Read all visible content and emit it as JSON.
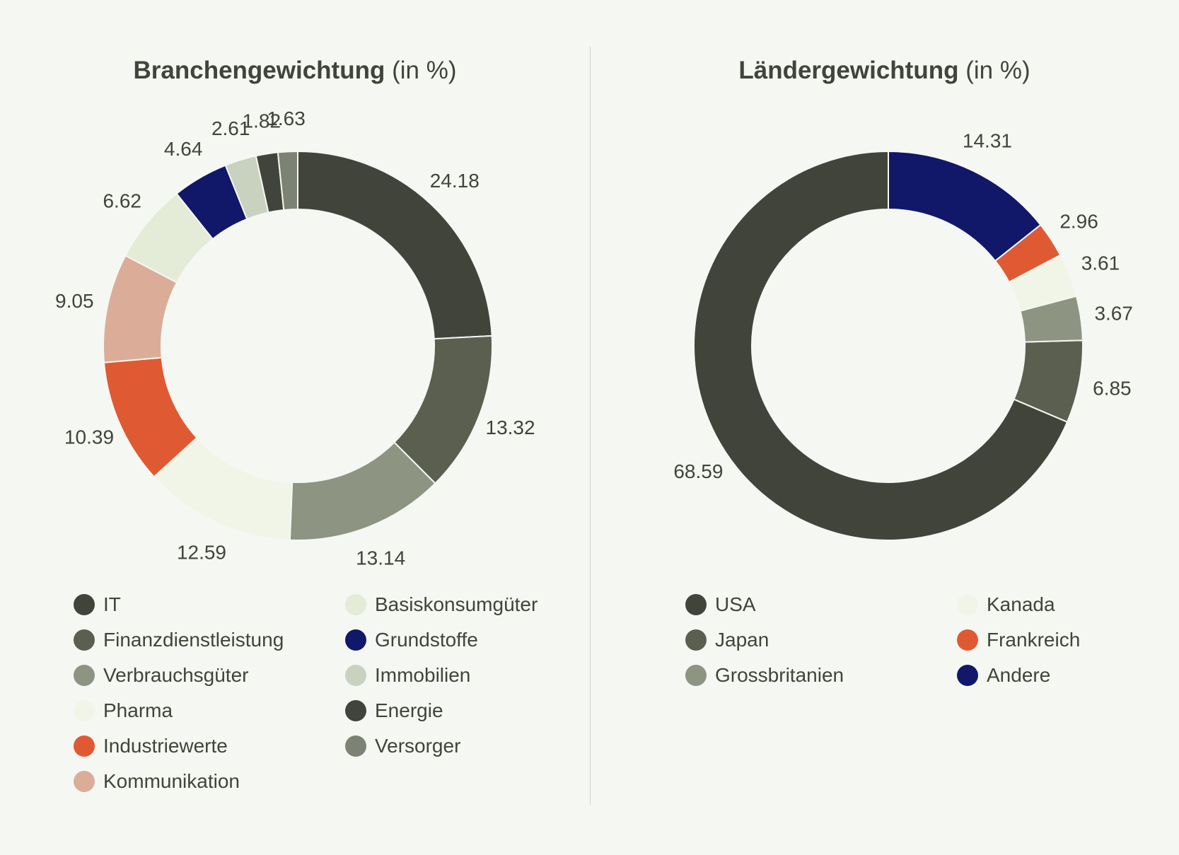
{
  "chart_data": [
    {
      "type": "pie",
      "title": "Branchengewichtung",
      "subtitle": "(in %)",
      "categories": [
        "IT",
        "Finanzdienstleistung",
        "Verbrauchsgüter",
        "Pharma",
        "Industriewerte",
        "Kommunikation",
        "Basiskonsumgüter",
        "Grundstoffe",
        "Immobilien",
        "Energie",
        "Versorger"
      ],
      "values": [
        24.18,
        13.32,
        13.14,
        12.59,
        10.39,
        9.05,
        6.62,
        4.64,
        2.61,
        1.82,
        1.63
      ],
      "labels": [
        "24.18",
        "13.32",
        "13.14",
        "12.59",
        "10.39",
        "9.05",
        "6.62",
        "4.64",
        "2.61",
        "1.82",
        "1.63"
      ],
      "colors": [
        "#41443a",
        "#5b5f50",
        "#8e9482",
        "#f0f5e8",
        "#df5a33",
        "#dbad98",
        "#e4ebd7",
        "#111869",
        "#c9d2bf",
        "#41443a",
        "#7c8374"
      ],
      "legend_placement": "bottom"
    },
    {
      "type": "pie",
      "title": "Ländergewichtung",
      "subtitle": "(in %)",
      "categories": [
        "USA",
        "Japan",
        "Grossbritanien",
        "Kanada",
        "Frankreich",
        "Andere"
      ],
      "values": [
        68.59,
        6.85,
        3.67,
        3.61,
        2.96,
        14.31
      ],
      "labels": [
        "68.59",
        "6.85",
        "3.67",
        "3.61",
        "2.96",
        "14.31"
      ],
      "colors": [
        "#41443a",
        "#5b5f50",
        "#8e9482",
        "#f0f5e8",
        "#df5a33",
        "#111869"
      ],
      "legend_placement": "bottom"
    }
  ]
}
